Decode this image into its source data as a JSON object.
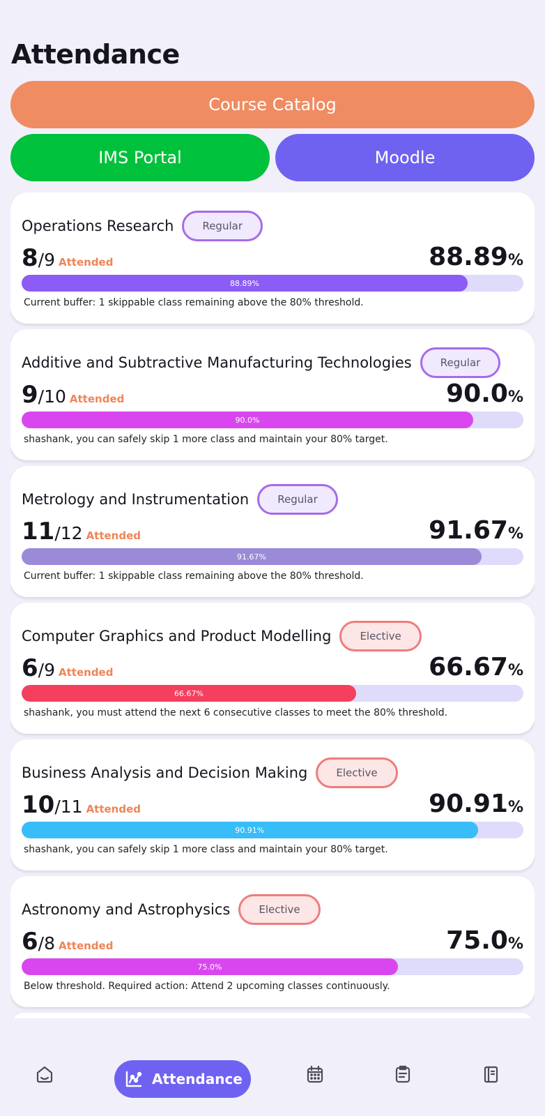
{
  "header": {
    "title": "Attendance"
  },
  "links": {
    "catalog": {
      "label": "Course Catalog",
      "color": "#ef8c62"
    },
    "ims": {
      "label": "IMS Portal",
      "color": "#00c13b"
    },
    "moodle": {
      "label": "Moodle",
      "color": "#6f62f0"
    }
  },
  "courses": [
    {
      "name": "Operations Research",
      "type": "Regular",
      "attended": "8",
      "total": "/9",
      "attended_label": "Attended",
      "percent": "88.89",
      "percent_symbol": "%",
      "bar_label": "88.89%",
      "fill_fraction": 0.8889,
      "bar_color": "#8b5cf6",
      "note": "Current buffer: 1 skippable class remaining above the 80% threshold."
    },
    {
      "name": "Additive and Subtractive Manufacturing Technologies",
      "type": "Regular",
      "attended": "9",
      "total": "/10",
      "attended_label": "Attended",
      "percent": "90.0",
      "percent_symbol": "%",
      "bar_label": "90.0%",
      "fill_fraction": 0.9,
      "bar_color": "#d946ef",
      "note": "shashank, you can safely skip 1 more class and maintain your 80% target."
    },
    {
      "name": "Metrology and Instrumentation",
      "type": "Regular",
      "attended": "11",
      "total": "/12",
      "attended_label": "Attended",
      "percent": "91.67",
      "percent_symbol": "%",
      "bar_label": "91.67%",
      "fill_fraction": 0.9167,
      "bar_color": "#9a8ad8",
      "note": "Current buffer: 1 skippable class remaining above the 80% threshold."
    },
    {
      "name": "Computer Graphics and Product Modelling",
      "type": "Elective",
      "attended": "6",
      "total": "/9",
      "attended_label": "Attended",
      "percent": "66.67",
      "percent_symbol": "%",
      "bar_label": "66.67%",
      "fill_fraction": 0.6667,
      "bar_color": "#f43f5e",
      "note": "shashank, you must attend the next 6 consecutive classes to meet the 80% threshold."
    },
    {
      "name": "Business Analysis and Decision Making",
      "type": "Elective",
      "attended": "10",
      "total": "/11",
      "attended_label": "Attended",
      "percent": "90.91",
      "percent_symbol": "%",
      "bar_label": "90.91%",
      "fill_fraction": 0.9091,
      "bar_color": "#38bdf8",
      "note": "shashank, you can safely skip 1 more class and maintain your 80% target."
    },
    {
      "name": "Astronomy and Astrophysics",
      "type": "Elective",
      "attended": "6",
      "total": "/8",
      "attended_label": "Attended",
      "percent": "75.0",
      "percent_symbol": "%",
      "bar_label": "75.0%",
      "fill_fraction": 0.75,
      "bar_color": "#d946ef",
      "note": "Below threshold. Required action: Attend 2 upcoming classes continuously."
    }
  ],
  "nav": {
    "items": [
      {
        "icon": "home-icon"
      },
      {
        "icon": "chart-icon",
        "label": "Attendance",
        "active": true
      },
      {
        "icon": "calendar-icon"
      },
      {
        "icon": "clipboard-icon"
      },
      {
        "icon": "notebook-icon"
      }
    ],
    "active_color": "#7062f1"
  }
}
